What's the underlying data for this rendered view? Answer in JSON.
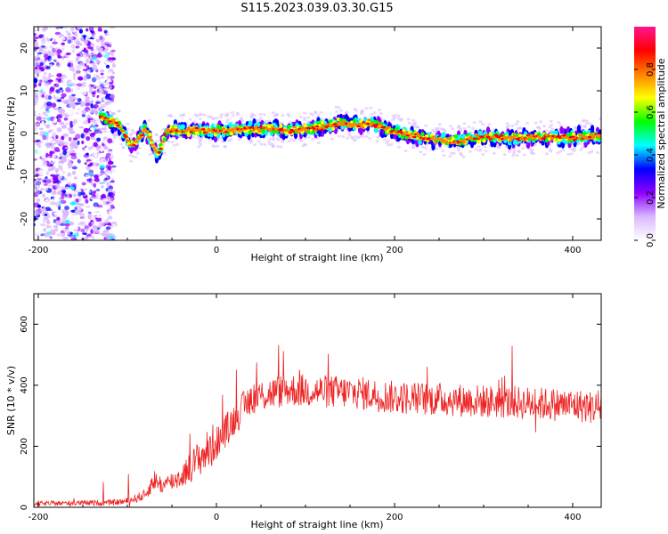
{
  "title": "S115.2023.039.03.30.G15",
  "chart_data": [
    {
      "type": "heatmap",
      "xlabel": "Height of straight line (km)",
      "ylabel": "Frequency (Hz)",
      "xlim": [
        -205,
        432
      ],
      "ylim": [
        -25,
        25
      ],
      "xticks": [
        "-200",
        "0",
        "200",
        "400"
      ],
      "yticks": [
        "-20",
        "-10",
        "0",
        "10",
        "20"
      ],
      "grid": false,
      "colorbar": {
        "label": "Normalized spectral amplitude",
        "ticks": [
          "0.0",
          "0.2",
          "0.4",
          "0.6",
          "0.8"
        ],
        "range": [
          0,
          1
        ],
        "colors": [
          "#ffffff",
          "#d9b8ff",
          "#8e00ff",
          "#0000ff",
          "#00ffff",
          "#00ff00",
          "#ffff00",
          "#ff8000",
          "#ff0000",
          "#ff1493"
        ]
      },
      "ridge": {
        "x": [
          -130,
          -110,
          -95,
          -80,
          -65,
          -55,
          -40,
          -20,
          0,
          20,
          40,
          60,
          80,
          100,
          120,
          140,
          160,
          175,
          190,
          210,
          230,
          250,
          270,
          290,
          310,
          330,
          350,
          370,
          390,
          410,
          432
        ],
        "y": [
          4,
          2,
          -3,
          1,
          -5,
          1,
          0.5,
          0.8,
          0.5,
          1,
          1.2,
          1,
          0.8,
          1,
          1.5,
          2.5,
          2,
          2.5,
          1,
          0,
          -0.8,
          -1.5,
          -1.8,
          -1,
          -0.8,
          -1.2,
          -1,
          -0.8,
          -1,
          -0.6,
          -0.5
        ]
      }
    },
    {
      "type": "line",
      "xlabel": "Height of straight line (km)",
      "ylabel": "SNR (10 * v/v)",
      "xlim": [
        -205,
        432
      ],
      "ylim": [
        0,
        700
      ],
      "xticks": [
        "-200",
        "0",
        "200",
        "400"
      ],
      "yticks": [
        "0",
        "200",
        "400",
        "600"
      ],
      "grid": false,
      "color": "#ee2222",
      "trend": {
        "x": [
          -205,
          -120,
          -100,
          -80,
          -70,
          -60,
          -40,
          -20,
          0,
          20,
          40,
          80,
          120,
          160,
          200,
          240,
          280,
          320,
          360,
          400,
          432
        ],
        "y": [
          12,
          15,
          20,
          40,
          90,
          70,
          100,
          160,
          210,
          290,
          360,
          385,
          380,
          375,
          360,
          355,
          350,
          345,
          340,
          335,
          325
        ]
      }
    }
  ]
}
